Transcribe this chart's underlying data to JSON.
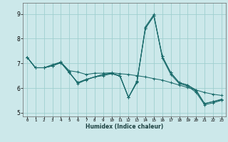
{
  "xlabel": "Humidex (Indice chaleur)",
  "background_color": "#cce8ea",
  "grid_color": "#9fcfcf",
  "line_color": "#1a6b6b",
  "xlim": [
    -0.5,
    23.5
  ],
  "ylim": [
    4.85,
    9.45
  ],
  "yticks": [
    5,
    6,
    7,
    8,
    9
  ],
  "xtick_labels": [
    "0",
    "1",
    "2",
    "3",
    "4",
    "5",
    "6",
    "7",
    "8",
    "9",
    "10",
    "11",
    "12",
    "13",
    "14",
    "15",
    "16",
    "17",
    "18",
    "19",
    "20",
    "21",
    "22",
    "23"
  ],
  "series": [
    [
      7.25,
      6.82,
      6.82,
      6.9,
      7.05,
      6.65,
      6.18,
      6.33,
      6.45,
      6.5,
      6.58,
      6.48,
      5.62,
      6.28,
      8.42,
      8.92,
      7.28,
      6.62,
      6.22,
      6.12,
      5.92,
      5.37,
      5.45,
      5.55
    ],
    [
      7.25,
      6.82,
      6.82,
      6.95,
      7.05,
      6.7,
      6.65,
      6.55,
      6.6,
      6.6,
      6.62,
      6.58,
      6.55,
      6.5,
      6.45,
      6.38,
      6.32,
      6.22,
      6.12,
      6.02,
      5.92,
      5.82,
      5.75,
      5.7
    ],
    [
      7.25,
      6.82,
      6.82,
      6.9,
      7.02,
      6.62,
      6.22,
      6.35,
      6.45,
      6.55,
      6.6,
      6.5,
      5.62,
      6.25,
      8.42,
      8.92,
      7.28,
      6.62,
      6.22,
      6.12,
      5.88,
      5.37,
      5.45,
      5.52
    ],
    [
      7.25,
      6.82,
      6.82,
      6.9,
      7.05,
      6.62,
      6.22,
      6.35,
      6.45,
      6.55,
      6.6,
      6.48,
      5.62,
      6.22,
      8.48,
      8.98,
      7.22,
      6.55,
      6.18,
      6.08,
      5.82,
      5.32,
      5.4,
      5.5
    ]
  ]
}
